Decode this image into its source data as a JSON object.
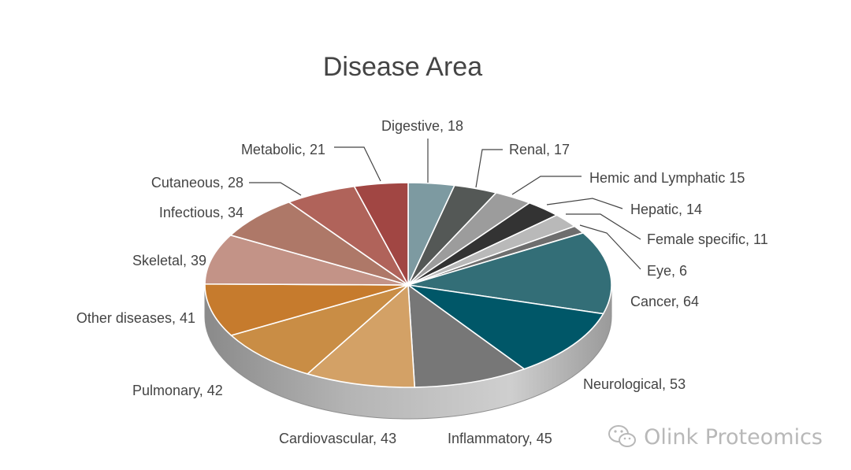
{
  "chart_data": {
    "type": "pie",
    "title": "Disease Area",
    "slices": [
      {
        "label": "Digestive, 18",
        "value": 18,
        "color": "#7d9aa1"
      },
      {
        "label": "Renal, 17",
        "value": 17,
        "color": "#545856"
      },
      {
        "label": "Hemic and Lymphatic 15",
        "value": 15,
        "color": "#9c9c9c"
      },
      {
        "label": "Hepatic, 14",
        "value": 14,
        "color": "#333333"
      },
      {
        "label": "Female specific, 11",
        "value": 11,
        "color": "#b9b9b9"
      },
      {
        "label": "Eye, 6",
        "value": 6,
        "color": "#6e6e6e"
      },
      {
        "label": "Cancer, 64",
        "value": 64,
        "color": "#336e77"
      },
      {
        "label": "Neurological, 53",
        "value": 53,
        "color": "#005768"
      },
      {
        "label": "Inflammatory, 45",
        "value": 45,
        "color": "#777777"
      },
      {
        "label": "Cardiovascular, 43",
        "value": 43,
        "color": "#d3a166"
      },
      {
        "label": "Pulmonary, 42",
        "value": 42,
        "color": "#c98d45"
      },
      {
        "label": "Other diseases, 41",
        "value": 41,
        "color": "#c67b2d"
      },
      {
        "label": "Skeletal, 39",
        "value": 39,
        "color": "#c39387"
      },
      {
        "label": "Infectious, 34",
        "value": 34,
        "color": "#ae7868"
      },
      {
        "label": "Cutaneous, 28",
        "value": 28,
        "color": "#b0635a"
      },
      {
        "label": "Metabolic, 21",
        "value": 21,
        "color": "#a14643"
      }
    ]
  },
  "watermark": {
    "text": "Olink Proteomics",
    "icon": "wechat-icon"
  }
}
